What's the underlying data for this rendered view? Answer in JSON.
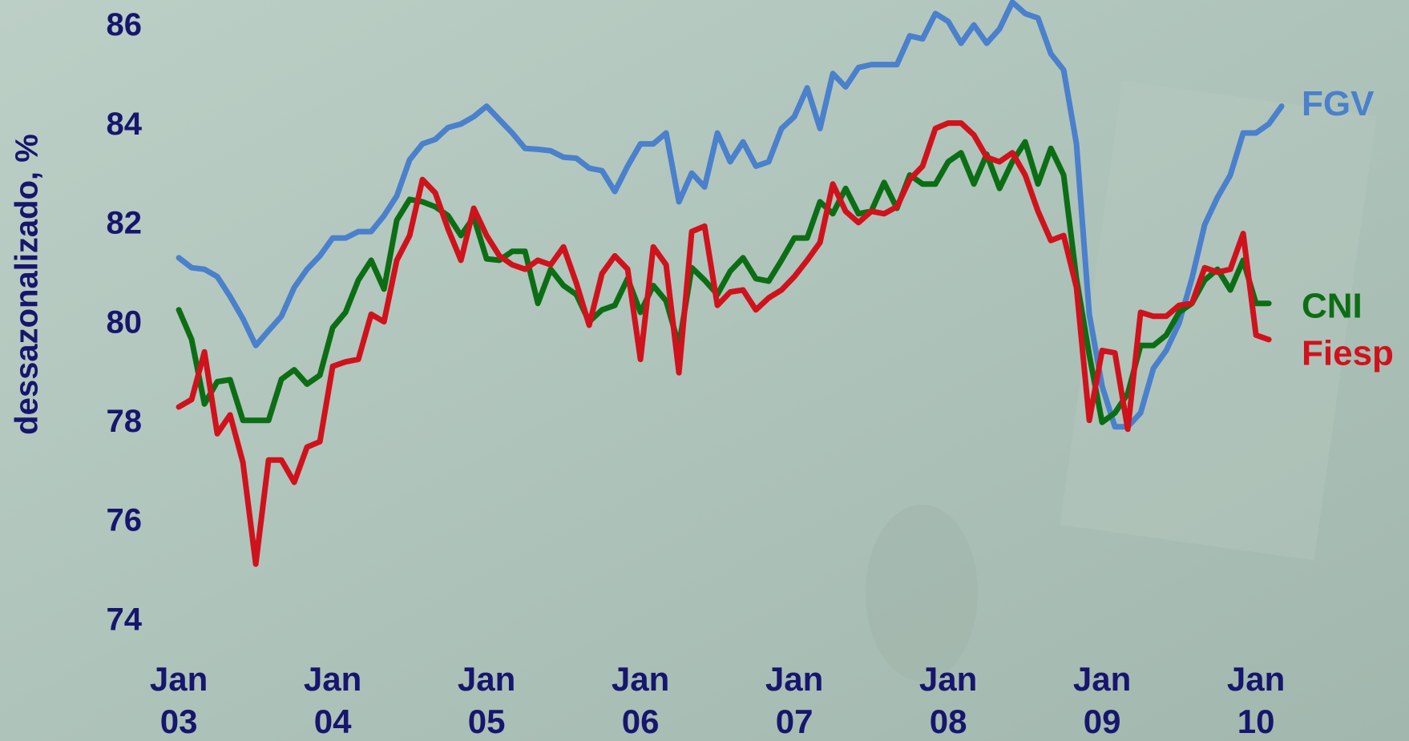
{
  "chart_data": {
    "type": "line",
    "ylabel": "dessazonalizado, %",
    "categories": [
      "Jan 03",
      null,
      null,
      null,
      null,
      null,
      null,
      null,
      null,
      null,
      null,
      null,
      "Jan 04",
      null,
      null,
      null,
      null,
      null,
      null,
      null,
      null,
      null,
      null,
      null,
      "Jan 05",
      null,
      null,
      null,
      null,
      null,
      null,
      null,
      null,
      null,
      null,
      null,
      "Jan 06",
      null,
      null,
      null,
      null,
      null,
      null,
      null,
      null,
      null,
      null,
      null,
      "Jan 07",
      null,
      null,
      null,
      null,
      null,
      null,
      null,
      null,
      null,
      null,
      null,
      "Jan 08",
      null,
      null,
      null,
      null,
      null,
      null,
      null,
      null,
      null,
      null,
      null,
      "Jan 09",
      null,
      null,
      null,
      null,
      null,
      null,
      null,
      null,
      null,
      null,
      null,
      "Jan 10",
      null,
      null
    ],
    "series": [
      {
        "name": "FGV",
        "color": "#4a80cc",
        "values": [
          81.34,
          81.14,
          81.11,
          80.96,
          80.56,
          80.11,
          79.57,
          79.87,
          80.16,
          80.74,
          81.11,
          81.38,
          81.74,
          81.74,
          81.87,
          81.87,
          82.19,
          82.59,
          83.32,
          83.64,
          83.73,
          83.97,
          84.04,
          84.19,
          84.4,
          84.13,
          83.86,
          83.55,
          83.53,
          83.5,
          83.37,
          83.35,
          83.15,
          83.1,
          82.68,
          83.19,
          83.64,
          83.64,
          83.86,
          82.47,
          83.05,
          82.77,
          83.86,
          83.28,
          83.68,
          83.19,
          83.28,
          83.95,
          84.19,
          84.77,
          83.95,
          85.06,
          84.79,
          85.18,
          85.24,
          85.24,
          85.24,
          85.82,
          85.76,
          86.27,
          86.11,
          85.67,
          86.04,
          85.67,
          85.96,
          86.5,
          86.27,
          86.18,
          85.46,
          85.13,
          83.64,
          80.2,
          78.75,
          77.93,
          77.93,
          78.21,
          79.11,
          79.47,
          80.02,
          80.92,
          82.01,
          82.56,
          83.01,
          83.86,
          83.86,
          84.04,
          84.4
        ]
      },
      {
        "name": "CNI",
        "color": "#0c6e14",
        "values": [
          80.29,
          79.69,
          78.39,
          78.84,
          78.88,
          78.06,
          78.06,
          78.06,
          78.89,
          79.08,
          78.79,
          78.97,
          79.93,
          80.24,
          80.89,
          81.29,
          80.71,
          82.1,
          82.52,
          82.47,
          82.37,
          82.19,
          81.79,
          82.16,
          81.32,
          81.29,
          81.47,
          81.47,
          80.42,
          81.11,
          80.78,
          80.6,
          80.05,
          80.29,
          80.38,
          80.92,
          80.24,
          80.78,
          80.47,
          79.57,
          81.14,
          80.89,
          80.6,
          81.07,
          81.34,
          80.92,
          80.87,
          81.29,
          81.74,
          81.74,
          82.47,
          82.23,
          82.74,
          82.23,
          82.28,
          82.86,
          82.34,
          83.01,
          82.83,
          82.83,
          83.28,
          83.46,
          82.83,
          83.43,
          82.74,
          83.28,
          83.68,
          82.83,
          83.55,
          83.01,
          80.92,
          79.38,
          78.02,
          78.21,
          78.6,
          79.57,
          79.57,
          79.78,
          80.24,
          80.42,
          80.89,
          81.11,
          80.69,
          81.29,
          80.42,
          80.42,
          null
        ]
      },
      {
        "name": "Fiesp",
        "color": "#d0121c",
        "values": [
          78.33,
          78.48,
          79.44,
          77.79,
          78.17,
          77.21,
          75.16,
          77.26,
          77.26,
          76.81,
          77.52,
          77.63,
          79.15,
          79.24,
          79.29,
          80.2,
          80.05,
          81.29,
          81.79,
          82.92,
          82.65,
          81.92,
          81.29,
          82.34,
          81.79,
          81.38,
          81.2,
          81.11,
          81.29,
          81.2,
          81.56,
          80.83,
          79.98,
          81.02,
          81.38,
          81.11,
          79.29,
          81.56,
          81.2,
          79.02,
          81.87,
          81.98,
          80.38,
          80.65,
          80.69,
          80.29,
          80.53,
          80.69,
          80.96,
          81.29,
          81.65,
          82.83,
          82.28,
          82.05,
          82.28,
          82.23,
          82.37,
          82.92,
          83.19,
          83.95,
          84.06,
          84.06,
          83.82,
          83.37,
          83.28,
          83.46,
          83.01,
          82.28,
          81.69,
          81.79,
          80.74,
          78.06,
          79.47,
          79.42,
          77.88,
          80.24,
          80.16,
          80.16,
          80.38,
          80.42,
          81.14,
          81.05,
          81.11,
          81.83,
          79.78,
          79.69,
          null
        ]
      }
    ],
    "ylim": [
      74,
      86.5
    ],
    "yticks": [
      74,
      76,
      78,
      80,
      82,
      84,
      86
    ]
  }
}
